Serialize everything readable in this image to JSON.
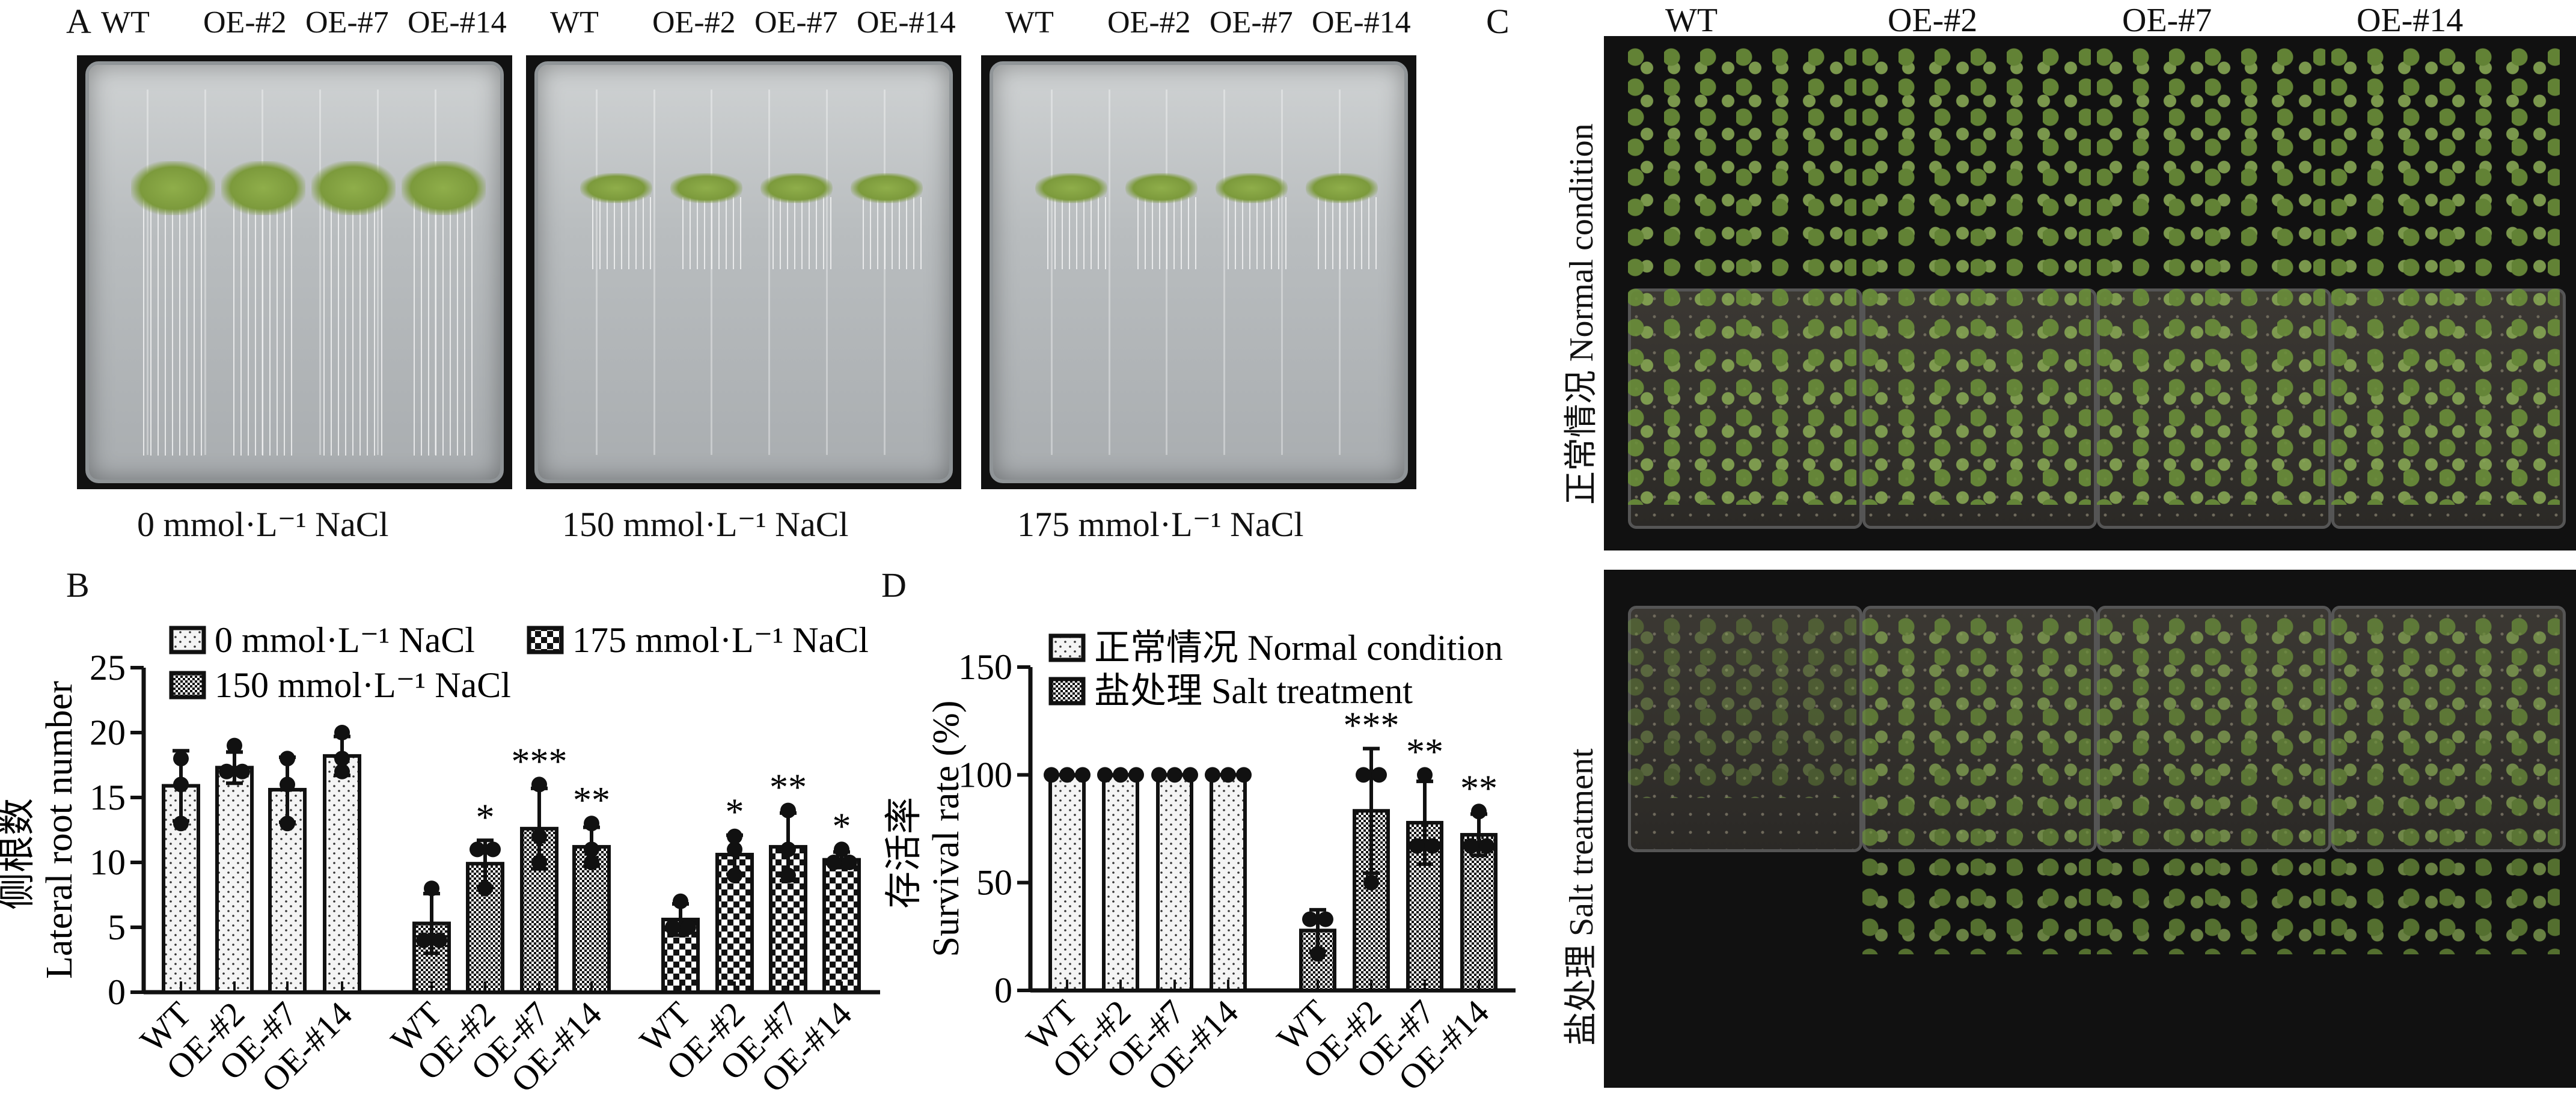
{
  "panel_labels": {
    "a": "A",
    "b": "B",
    "c": "C",
    "d": "D"
  },
  "panel_a": {
    "plates": [
      {
        "headers": [
          "WT",
          "OE-#2",
          "OE-#7",
          "OE-#14"
        ],
        "caption": "0 mmol·L⁻¹ NaCl"
      },
      {
        "headers": [
          "WT",
          "OE-#2",
          "OE-#7",
          "OE-#14"
        ],
        "caption": "150 mmol·L⁻¹ NaCl"
      },
      {
        "headers": [
          "WT",
          "OE-#2",
          "OE-#7",
          "OE-#14"
        ],
        "caption": "175 mmol·L⁻¹ NaCl"
      }
    ]
  },
  "panel_c": {
    "columns": [
      "WT",
      "OE-#2",
      "OE-#7",
      "OE-#14"
    ],
    "rows": [
      {
        "label": "正常情况 Normal condition"
      },
      {
        "label": "盐处理 Salt treatment"
      }
    ],
    "colors": {
      "background": "#111111",
      "leaf": "#7c9a3c",
      "soil": "#3b3833"
    }
  },
  "chart_data": [
    {
      "type": "bar",
      "panel": "B",
      "ylabel_cn": "侧根数",
      "ylabel": "Lateral root number",
      "ylim": [
        0,
        25
      ],
      "yticks": [
        "0",
        "5",
        "10",
        "15",
        "20",
        "25"
      ],
      "categories": [
        "WT",
        "OE-#2",
        "OE-#7",
        "OE-#14"
      ],
      "legend": [
        "0 mmol·L⁻¹ NaCl",
        "150 mmol·L⁻¹ NaCl",
        "175 mmol·L⁻¹ NaCl"
      ],
      "legend_position": "top",
      "series": [
        {
          "name": "0 mmol·L⁻¹ NaCl",
          "pattern": "dots",
          "values": [
            15.9,
            17.3,
            15.6,
            18.2
          ],
          "sd": [
            2.7,
            1.2,
            2.5,
            1.5
          ],
          "points": [
            [
              13,
              16,
              18
            ],
            [
              17,
              17,
              19
            ],
            [
              13,
              16,
              18
            ],
            [
              17,
              18,
              20
            ]
          ],
          "sig": [
            "",
            "",
            "",
            ""
          ]
        },
        {
          "name": "150 mmol·L⁻¹ NaCl",
          "pattern": "fine-check",
          "values": [
            5.3,
            9.9,
            12.6,
            11.2
          ],
          "sd": [
            2.3,
            1.8,
            3.1,
            1.5
          ],
          "points": [
            [
              4,
              4,
              8
            ],
            [
              8,
              11,
              11
            ],
            [
              10,
              12,
              16
            ],
            [
              10,
              11,
              13
            ]
          ],
          "sig": [
            "",
            "*",
            "***",
            "**"
          ]
        },
        {
          "name": "175 mmol·L⁻¹ NaCl",
          "pattern": "coarse-check",
          "values": [
            5.6,
            10.6,
            11.2,
            10.2
          ],
          "sd": [
            1.2,
            1.5,
            2.6,
            0.6
          ],
          "points": [
            [
              5,
              5,
              7
            ],
            [
              9,
              11,
              12
            ],
            [
              9,
              11,
              14
            ],
            [
              10,
              10,
              11
            ]
          ],
          "sig": [
            "",
            "*",
            "**",
            "*"
          ]
        }
      ]
    },
    {
      "type": "bar",
      "panel": "D",
      "ylabel_cn": "存活率",
      "ylabel": "Survival rate (%)",
      "ylim": [
        0,
        150
      ],
      "yticks": [
        "0",
        "50",
        "100",
        "150"
      ],
      "categories": [
        "WT",
        "OE-#2",
        "OE-#7",
        "OE-#14"
      ],
      "legend": [
        "正常情况 Normal condition",
        "盐处理 Salt treatment"
      ],
      "legend_position": "top",
      "series": [
        {
          "name": "正常情况 Normal condition",
          "pattern": "dots",
          "values": [
            100,
            100,
            100,
            100
          ],
          "sd": [
            0,
            0,
            0,
            0
          ],
          "points": [
            [
              100,
              100,
              100
            ],
            [
              100,
              100,
              100
            ],
            [
              100,
              100,
              100
            ],
            [
              100,
              100,
              100
            ]
          ],
          "sig": [
            "",
            "",
            "",
            ""
          ]
        },
        {
          "name": "盐处理 Salt treatment",
          "pattern": "fine-check",
          "values": [
            27.8,
            83.3,
            77.8,
            72.2
          ],
          "sd": [
            9.6,
            28.9,
            19.2,
            9.6
          ],
          "points": [
            [
              17,
              33,
              33
            ],
            [
              50,
              100,
              100
            ],
            [
              67,
              67,
              100
            ],
            [
              67,
              67,
              83
            ]
          ],
          "sig": [
            "",
            "***",
            "**",
            "**"
          ]
        }
      ]
    }
  ]
}
